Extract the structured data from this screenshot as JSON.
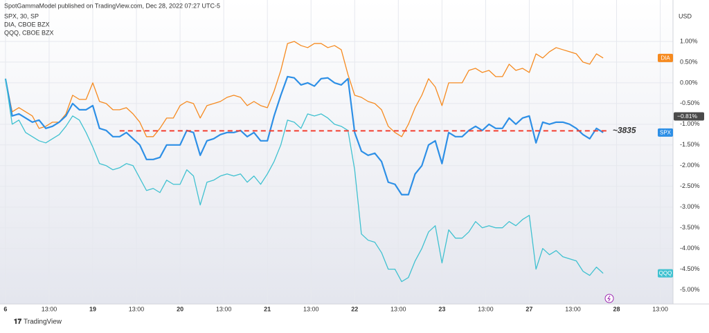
{
  "chart_data": {
    "type": "line",
    "title": "SpotGammaModel published on TradingView.com, Dec 28, 2022 07:27 UTC-5",
    "legend": [
      "SPX, 30, SP",
      "DIA, CBOE BZX",
      "QQQ, CBOE BZX"
    ],
    "y_unit": "USD",
    "footer": "TradingView",
    "x": [
      0,
      1,
      2,
      3,
      4,
      5,
      6,
      7,
      8,
      9,
      10,
      11,
      12,
      13,
      14,
      15,
      16,
      17,
      18,
      19,
      20,
      21,
      22,
      23,
      24,
      25,
      26,
      27,
      28,
      29,
      30,
      31,
      32,
      33,
      34,
      35,
      36,
      37,
      38,
      39,
      40,
      41,
      42,
      43,
      44,
      45,
      46,
      47,
      48,
      49,
      50,
      51,
      52,
      53,
      54,
      55,
      56,
      57,
      58,
      59,
      60,
      61,
      62,
      63,
      64,
      65,
      66,
      67,
      68,
      69,
      70,
      71,
      72,
      73,
      74,
      75,
      76,
      77,
      78,
      79,
      80,
      81,
      82,
      83,
      84,
      85,
      86,
      87,
      88,
      89
    ],
    "xlim": [
      -0.3,
      99.4
    ],
    "xticks": [
      {
        "value": 0,
        "label": "6"
      },
      {
        "value": 6.5,
        "label": "13:00"
      },
      {
        "value": 13,
        "label": "19"
      },
      {
        "value": 19.5,
        "label": "13:00"
      },
      {
        "value": 26,
        "label": "20"
      },
      {
        "value": 32.5,
        "label": "13:00"
      },
      {
        "value": 39,
        "label": "21"
      },
      {
        "value": 45.5,
        "label": "13:00"
      },
      {
        "value": 52,
        "label": "22"
      },
      {
        "value": 58.5,
        "label": "13:00"
      },
      {
        "value": 65,
        "label": "23"
      },
      {
        "value": 71.5,
        "label": "13:00"
      },
      {
        "value": 78,
        "label": "27"
      },
      {
        "value": 84.5,
        "label": "13:00"
      },
      {
        "value": 91,
        "label": "28"
      },
      {
        "value": 97.5,
        "label": "13:00"
      }
    ],
    "ylim": [
      -5.34,
      2.0
    ],
    "yticks": [
      {
        "value": 1,
        "label": "1.00%"
      },
      {
        "value": 0.5,
        "label": "0.50%"
      },
      {
        "value": 0,
        "label": "0.00%"
      },
      {
        "value": -0.5,
        "label": "-0.50%"
      },
      {
        "value": -1,
        "label": "-1.00%"
      },
      {
        "value": -1.5,
        "label": "-1.50%"
      },
      {
        "value": -2,
        "label": "-2.00%"
      },
      {
        "value": -2.5,
        "label": "-2.50%"
      },
      {
        "value": -3,
        "label": "-3.00%"
      },
      {
        "value": -3.5,
        "label": "-3.50%"
      },
      {
        "value": -4,
        "label": "-4.00%"
      },
      {
        "value": -4.5,
        "label": "-4.50%"
      },
      {
        "value": -5,
        "label": "-5.00%"
      }
    ],
    "grid": true,
    "series": [
      {
        "name": "DIA",
        "color": "#f68a1f",
        "width": 1.3,
        "values": [
          0.1,
          -0.7,
          -0.6,
          -0.7,
          -0.8,
          -1.1,
          -1.05,
          -0.95,
          -0.95,
          -0.75,
          -0.3,
          -0.4,
          -0.4,
          0.0,
          -0.45,
          -0.5,
          -0.65,
          -0.65,
          -0.6,
          -0.75,
          -0.95,
          -1.3,
          -1.3,
          -1.1,
          -0.85,
          -0.85,
          -0.55,
          -0.45,
          -0.5,
          -0.85,
          -0.55,
          -0.5,
          -0.45,
          -0.35,
          -0.3,
          -0.35,
          -0.55,
          -0.45,
          -0.55,
          -0.6,
          -0.2,
          0.3,
          0.95,
          1.0,
          0.9,
          0.85,
          0.95,
          0.95,
          0.85,
          0.9,
          0.8,
          0.2,
          -0.3,
          -0.35,
          -0.45,
          -0.5,
          -0.65,
          -1.05,
          -1.2,
          -1.3,
          -1.0,
          -0.6,
          -0.3,
          0.1,
          -0.1,
          -0.55,
          0.0,
          0.0,
          0.0,
          0.3,
          0.35,
          0.25,
          0.3,
          0.15,
          0.15,
          0.45,
          0.3,
          0.35,
          0.25,
          0.7,
          0.6,
          0.75,
          0.85,
          0.8,
          0.75,
          0.7,
          0.5,
          0.45,
          0.7,
          0.6
        ]
      },
      {
        "name": "SPX",
        "color": "#2d8fe6",
        "width": 2.2,
        "values": [
          0.1,
          -0.8,
          -0.75,
          -0.85,
          -0.95,
          -0.9,
          -1.1,
          -1.05,
          -0.95,
          -0.8,
          -0.5,
          -0.65,
          -0.65,
          -0.55,
          -1.1,
          -1.15,
          -1.3,
          -1.3,
          -1.2,
          -1.35,
          -1.5,
          -1.85,
          -1.85,
          -1.8,
          -1.5,
          -1.5,
          -1.5,
          -1.15,
          -1.2,
          -1.75,
          -1.4,
          -1.35,
          -1.25,
          -1.2,
          -1.2,
          -1.15,
          -1.3,
          -1.2,
          -1.4,
          -1.4,
          -0.8,
          -0.3,
          0.15,
          0.12,
          -0.05,
          0.0,
          -0.08,
          0.1,
          0.12,
          0.0,
          -0.05,
          0.1,
          -1.2,
          -1.65,
          -1.75,
          -1.7,
          -1.9,
          -2.4,
          -2.45,
          -2.7,
          -2.7,
          -2.2,
          -2.0,
          -1.5,
          -1.4,
          -1.95,
          -1.2,
          -1.3,
          -1.3,
          -1.15,
          -1.05,
          -1.15,
          -1.0,
          -1.1,
          -1.1,
          -0.85,
          -1.0,
          -0.85,
          -0.8,
          -1.45,
          -0.95,
          -1.0,
          -0.95,
          -0.95,
          -1.0,
          -1.1,
          -1.25,
          -1.35,
          -1.1,
          -1.2
        ]
      },
      {
        "name": "QQQ",
        "color": "#3fc1d0",
        "width": 1.3,
        "values": [
          0.1,
          -1.0,
          -0.9,
          -1.2,
          -1.3,
          -1.4,
          -1.45,
          -1.35,
          -1.25,
          -1.05,
          -0.8,
          -0.9,
          -1.2,
          -1.55,
          -1.95,
          -2.0,
          -2.1,
          -2.05,
          -1.95,
          -2.0,
          -2.3,
          -2.6,
          -2.55,
          -2.65,
          -2.35,
          -2.45,
          -2.45,
          -2.1,
          -2.25,
          -2.95,
          -2.4,
          -2.35,
          -2.25,
          -2.2,
          -2.25,
          -2.2,
          -2.4,
          -2.25,
          -2.45,
          -2.2,
          -1.9,
          -1.5,
          -0.9,
          -0.95,
          -1.1,
          -0.75,
          -0.8,
          -0.75,
          -0.85,
          -1.0,
          -1.05,
          -1.15,
          -2.1,
          -3.65,
          -3.8,
          -3.85,
          -4.1,
          -4.5,
          -4.5,
          -4.8,
          -4.7,
          -4.3,
          -4.0,
          -3.6,
          -3.45,
          -4.35,
          -3.55,
          -3.75,
          -3.75,
          -3.6,
          -3.35,
          -3.5,
          -3.45,
          -3.5,
          -3.5,
          -3.35,
          -3.45,
          -3.3,
          -3.2,
          -4.5,
          -4.0,
          -4.15,
          -4.05,
          -4.2,
          -4.25,
          -4.3,
          -4.55,
          -4.65,
          -4.45,
          -4.6
        ]
      }
    ],
    "reference_line": {
      "value": -1.16,
      "x": [
        17,
        90
      ],
      "label": "~3835",
      "color": "#f23d2e"
    },
    "price_tag": {
      "value": -0.81,
      "label": "−0.81%"
    }
  }
}
